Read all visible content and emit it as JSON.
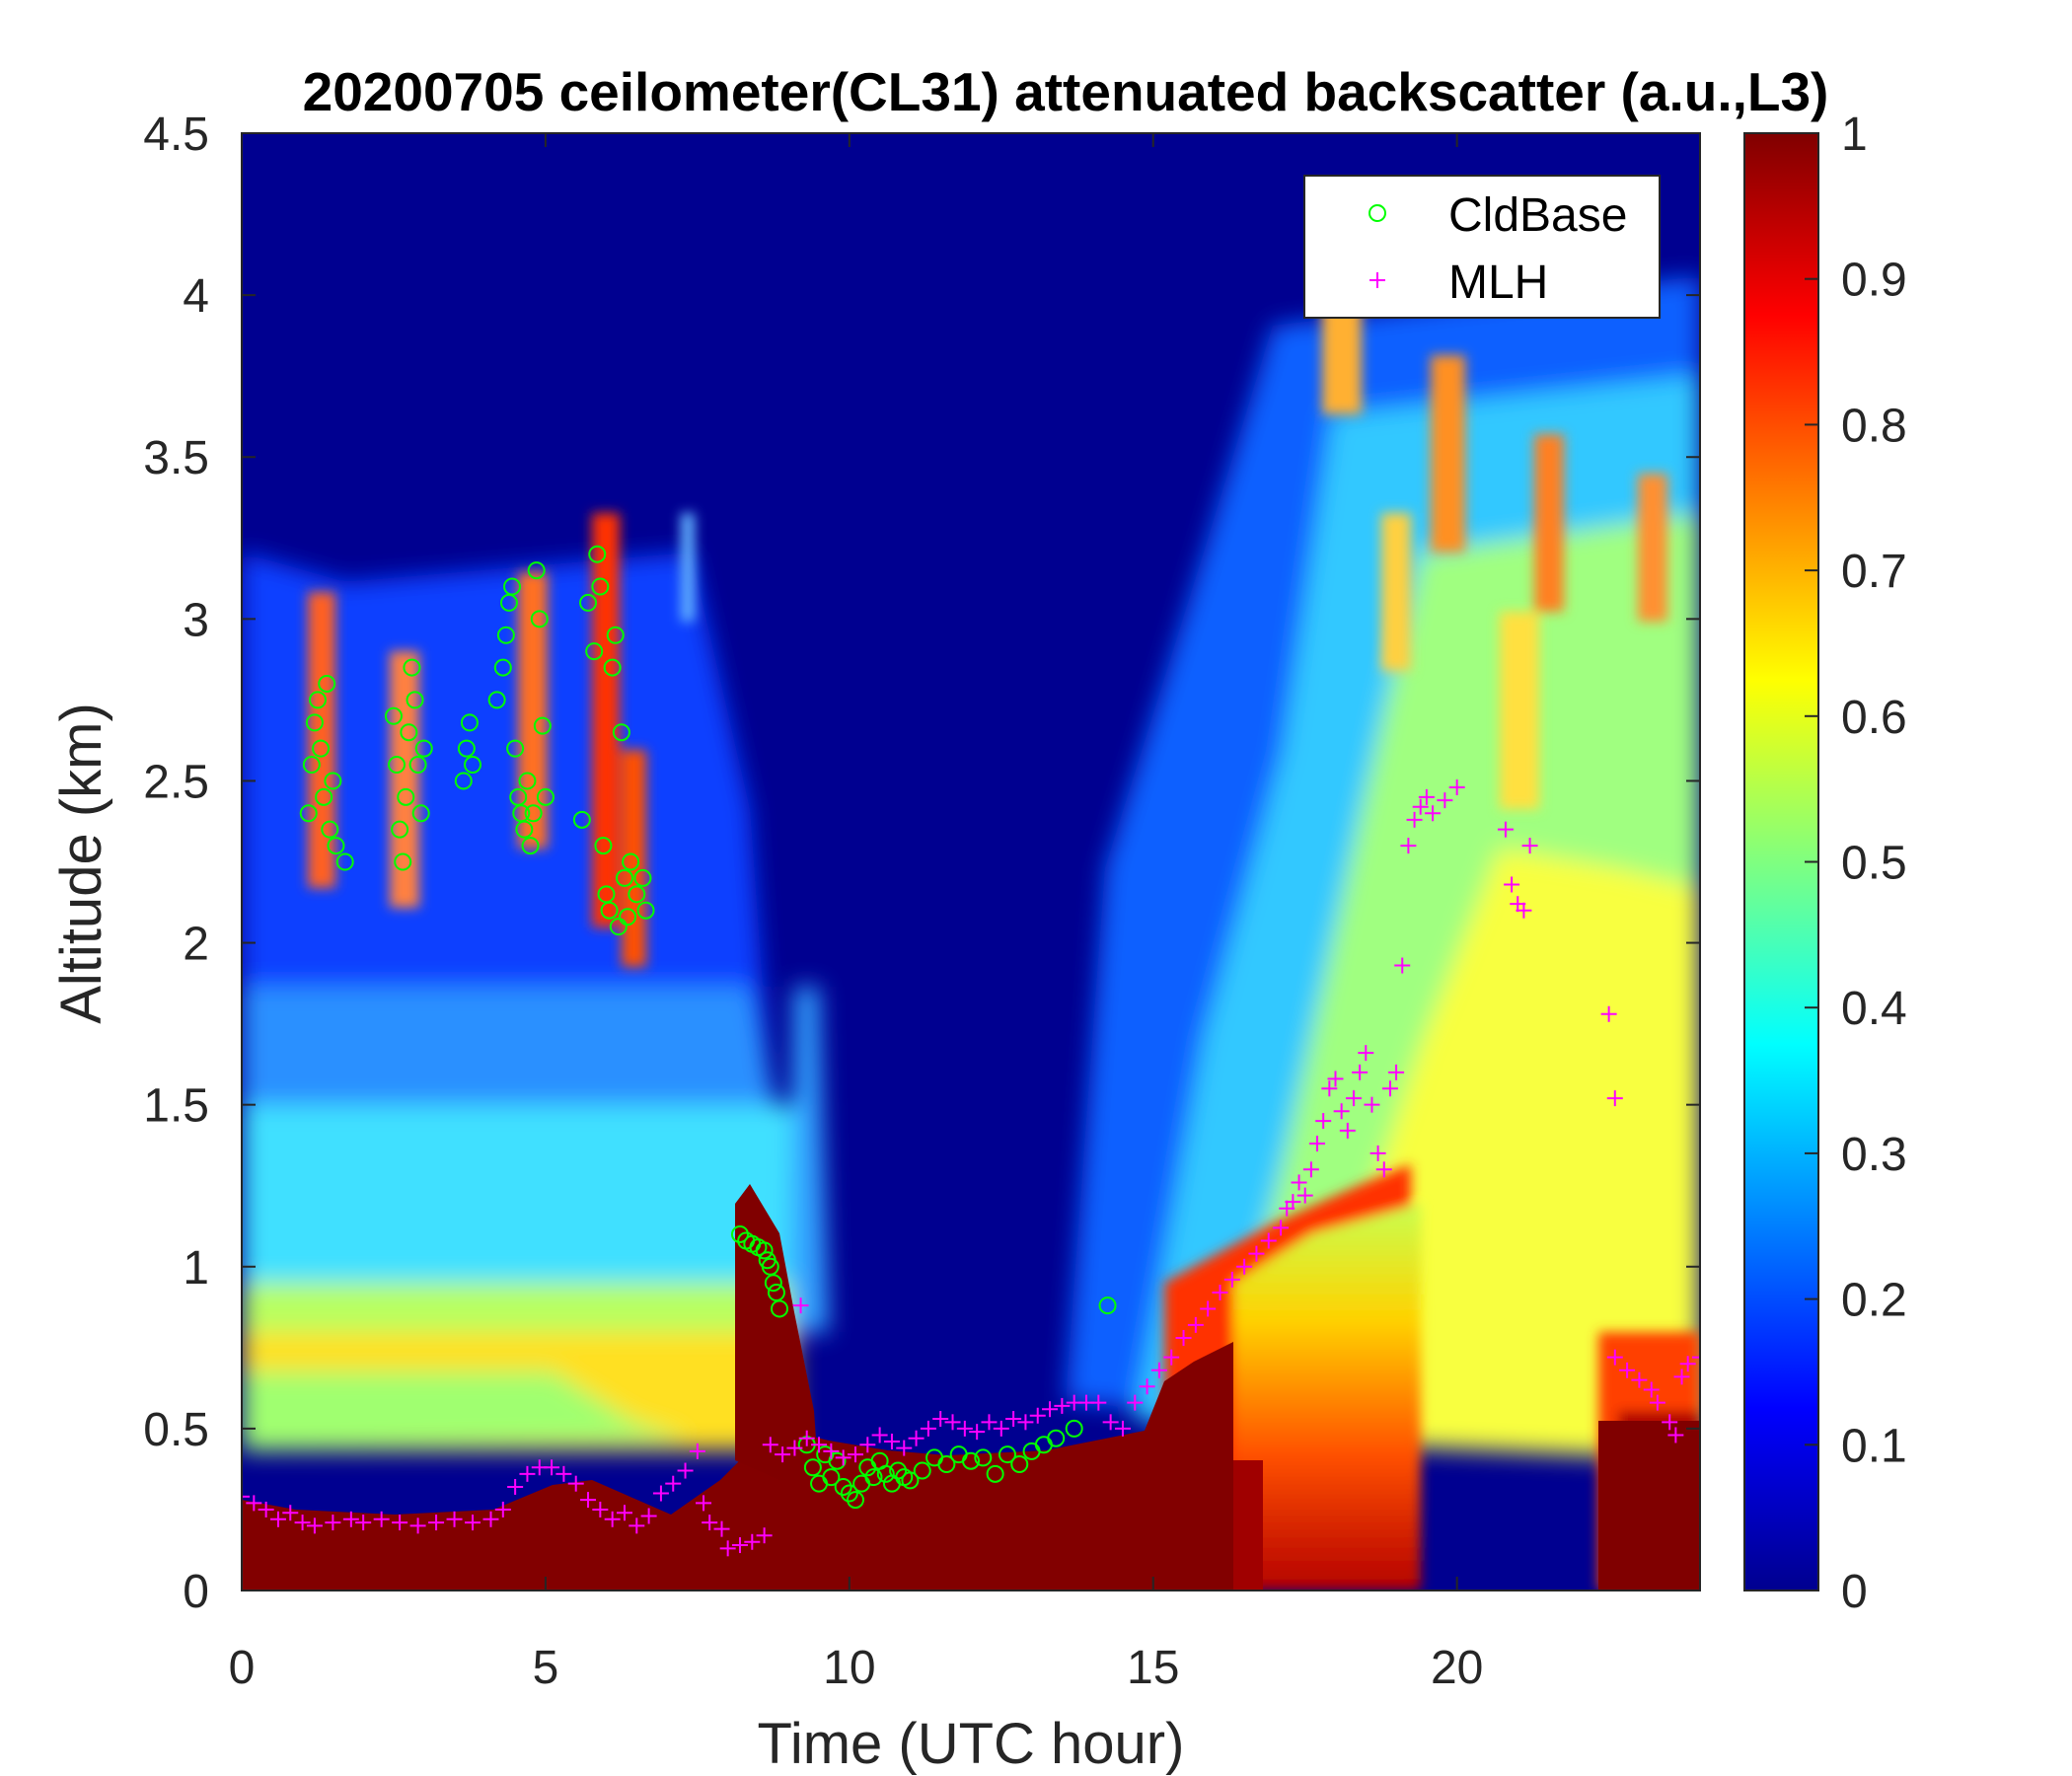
{
  "chart_data": {
    "type": "heatmap",
    "title": "20200705 ceilometer(CL31) attenuated backscatter (a.u.,L3)",
    "xlabel": "Time (UTC hour)",
    "ylabel": "Altitude (km)",
    "xlim": [
      0,
      24
    ],
    "ylim": [
      0,
      4.5
    ],
    "xticks": [
      0,
      5,
      10,
      15,
      20
    ],
    "yticks": [
      0,
      0.5,
      1,
      1.5,
      2,
      2.5,
      3,
      3.5,
      4,
      4.5
    ],
    "xtick_labels": [
      "0",
      "5",
      "10",
      "15",
      "20"
    ],
    "ytick_labels": [
      "0",
      "0.5",
      "1",
      "1.5",
      "2",
      "2.5",
      "3",
      "3.5",
      "4",
      "4.5"
    ],
    "colorbar": {
      "colormap": "jet",
      "clim": [
        0,
        1
      ],
      "ticks": [
        0,
        0.1,
        0.2,
        0.3,
        0.4,
        0.5,
        0.6,
        0.7,
        0.8,
        0.9,
        1
      ],
      "tick_labels": [
        "0",
        "0.1",
        "0.2",
        "0.3",
        "0.4",
        "0.5",
        "0.6",
        "0.7",
        "0.8",
        "0.9",
        "1"
      ]
    },
    "legend": {
      "position": "top-right",
      "entries": [
        "CldBase",
        "MLH"
      ]
    },
    "colors": {
      "CldBase": "#00ff00",
      "MLH": "#ff00ff"
    },
    "series": [
      {
        "name": "CldBase",
        "marker": "circle",
        "points": [
          [
            1.1,
            2.4
          ],
          [
            1.15,
            2.55
          ],
          [
            1.2,
            2.68
          ],
          [
            1.25,
            2.75
          ],
          [
            1.3,
            2.6
          ],
          [
            1.35,
            2.45
          ],
          [
            1.4,
            2.8
          ],
          [
            1.45,
            2.35
          ],
          [
            1.5,
            2.5
          ],
          [
            1.55,
            2.3
          ],
          [
            1.7,
            2.25
          ],
          [
            2.5,
            2.7
          ],
          [
            2.55,
            2.55
          ],
          [
            2.6,
            2.35
          ],
          [
            2.65,
            2.25
          ],
          [
            2.7,
            2.45
          ],
          [
            2.75,
            2.65
          ],
          [
            2.8,
            2.85
          ],
          [
            2.85,
            2.75
          ],
          [
            2.9,
            2.55
          ],
          [
            2.95,
            2.4
          ],
          [
            3.0,
            2.6
          ],
          [
            3.65,
            2.5
          ],
          [
            3.7,
            2.6
          ],
          [
            3.75,
            2.68
          ],
          [
            3.8,
            2.55
          ],
          [
            4.2,
            2.75
          ],
          [
            4.3,
            2.85
          ],
          [
            4.35,
            2.95
          ],
          [
            4.4,
            3.05
          ],
          [
            4.45,
            3.1
          ],
          [
            4.5,
            2.6
          ],
          [
            4.55,
            2.45
          ],
          [
            4.6,
            2.4
          ],
          [
            4.65,
            2.35
          ],
          [
            4.7,
            2.5
          ],
          [
            4.75,
            2.3
          ],
          [
            4.8,
            2.4
          ],
          [
            4.85,
            3.15
          ],
          [
            4.9,
            3.0
          ],
          [
            4.95,
            2.67
          ],
          [
            5.0,
            2.45
          ],
          [
            5.6,
            2.38
          ],
          [
            5.7,
            3.05
          ],
          [
            5.8,
            2.9
          ],
          [
            5.85,
            3.2
          ],
          [
            5.9,
            3.1
          ],
          [
            5.95,
            2.3
          ],
          [
            6.0,
            2.15
          ],
          [
            6.05,
            2.1
          ],
          [
            6.1,
            2.85
          ],
          [
            6.15,
            2.95
          ],
          [
            6.2,
            2.05
          ],
          [
            6.25,
            2.65
          ],
          [
            6.3,
            2.2
          ],
          [
            6.35,
            2.08
          ],
          [
            6.4,
            2.25
          ],
          [
            6.5,
            2.15
          ],
          [
            6.6,
            2.2
          ],
          [
            6.65,
            2.1
          ],
          [
            8.2,
            1.1
          ],
          [
            8.3,
            1.08
          ],
          [
            8.4,
            1.07
          ],
          [
            8.5,
            1.06
          ],
          [
            8.6,
            1.05
          ],
          [
            8.65,
            1.02
          ],
          [
            8.7,
            1.0
          ],
          [
            8.75,
            0.95
          ],
          [
            8.8,
            0.92
          ],
          [
            8.85,
            0.87
          ],
          [
            9.3,
            0.45
          ],
          [
            9.4,
            0.38
          ],
          [
            9.5,
            0.33
          ],
          [
            9.6,
            0.42
          ],
          [
            9.7,
            0.35
          ],
          [
            9.8,
            0.4
          ],
          [
            9.9,
            0.32
          ],
          [
            10.0,
            0.3
          ],
          [
            10.1,
            0.28
          ],
          [
            10.2,
            0.33
          ],
          [
            10.3,
            0.38
          ],
          [
            10.4,
            0.35
          ],
          [
            10.5,
            0.4
          ],
          [
            10.6,
            0.36
          ],
          [
            10.7,
            0.33
          ],
          [
            10.8,
            0.37
          ],
          [
            10.9,
            0.35
          ],
          [
            11.0,
            0.34
          ],
          [
            11.2,
            0.37
          ],
          [
            11.4,
            0.41
          ],
          [
            11.6,
            0.39
          ],
          [
            11.8,
            0.42
          ],
          [
            12.0,
            0.4
          ],
          [
            12.2,
            0.41
          ],
          [
            12.4,
            0.36
          ],
          [
            12.6,
            0.42
          ],
          [
            12.8,
            0.39
          ],
          [
            13.0,
            0.43
          ],
          [
            13.2,
            0.45
          ],
          [
            13.4,
            0.47
          ],
          [
            13.7,
            0.5
          ],
          [
            14.25,
            0.88
          ]
        ]
      },
      {
        "name": "MLH",
        "marker": "plus",
        "points": [
          [
            0.0,
            0.29
          ],
          [
            0.2,
            0.27
          ],
          [
            0.4,
            0.25
          ],
          [
            0.6,
            0.22
          ],
          [
            0.8,
            0.24
          ],
          [
            1.0,
            0.21
          ],
          [
            1.2,
            0.2
          ],
          [
            1.5,
            0.21
          ],
          [
            1.8,
            0.22
          ],
          [
            2.0,
            0.21
          ],
          [
            2.3,
            0.22
          ],
          [
            2.6,
            0.21
          ],
          [
            2.9,
            0.2
          ],
          [
            3.2,
            0.21
          ],
          [
            3.5,
            0.22
          ],
          [
            3.8,
            0.21
          ],
          [
            4.1,
            0.22
          ],
          [
            4.3,
            0.25
          ],
          [
            4.5,
            0.32
          ],
          [
            4.7,
            0.36
          ],
          [
            4.9,
            0.38
          ],
          [
            5.1,
            0.38
          ],
          [
            5.3,
            0.36
          ],
          [
            5.5,
            0.33
          ],
          [
            5.7,
            0.28
          ],
          [
            5.9,
            0.25
          ],
          [
            6.1,
            0.22
          ],
          [
            6.3,
            0.24
          ],
          [
            6.5,
            0.2
          ],
          [
            6.7,
            0.23
          ],
          [
            6.9,
            0.3
          ],
          [
            7.1,
            0.33
          ],
          [
            7.3,
            0.37
          ],
          [
            7.5,
            0.43
          ],
          [
            7.6,
            0.27
          ],
          [
            7.7,
            0.21
          ],
          [
            7.9,
            0.19
          ],
          [
            8.0,
            0.13
          ],
          [
            8.2,
            0.14
          ],
          [
            8.4,
            0.15
          ],
          [
            8.6,
            0.17
          ],
          [
            8.7,
            0.45
          ],
          [
            8.9,
            0.42
          ],
          [
            9.1,
            0.44
          ],
          [
            9.2,
            0.88
          ],
          [
            9.3,
            0.47
          ],
          [
            9.5,
            0.45
          ],
          [
            9.7,
            0.43
          ],
          [
            9.9,
            0.41
          ],
          [
            10.1,
            0.42
          ],
          [
            10.3,
            0.45
          ],
          [
            10.5,
            0.48
          ],
          [
            10.7,
            0.46
          ],
          [
            10.9,
            0.44
          ],
          [
            11.1,
            0.47
          ],
          [
            11.3,
            0.5
          ],
          [
            11.5,
            0.53
          ],
          [
            11.7,
            0.52
          ],
          [
            11.9,
            0.5
          ],
          [
            12.1,
            0.49
          ],
          [
            12.3,
            0.52
          ],
          [
            12.5,
            0.5
          ],
          [
            12.7,
            0.53
          ],
          [
            12.9,
            0.52
          ],
          [
            13.1,
            0.54
          ],
          [
            13.3,
            0.56
          ],
          [
            13.5,
            0.57
          ],
          [
            13.7,
            0.58
          ],
          [
            13.9,
            0.58
          ],
          [
            14.1,
            0.58
          ],
          [
            14.3,
            0.52
          ],
          [
            14.5,
            0.5
          ],
          [
            14.7,
            0.58
          ],
          [
            14.9,
            0.63
          ],
          [
            15.1,
            0.68
          ],
          [
            15.3,
            0.72
          ],
          [
            15.5,
            0.78
          ],
          [
            15.7,
            0.82
          ],
          [
            15.9,
            0.87
          ],
          [
            16.1,
            0.92
          ],
          [
            16.3,
            0.96
          ],
          [
            16.5,
            1.0
          ],
          [
            16.7,
            1.04
          ],
          [
            16.9,
            1.08
          ],
          [
            17.1,
            1.12
          ],
          [
            17.2,
            1.18
          ],
          [
            17.3,
            1.2
          ],
          [
            17.4,
            1.26
          ],
          [
            17.5,
            1.22
          ],
          [
            17.6,
            1.3
          ],
          [
            17.7,
            1.38
          ],
          [
            17.8,
            1.45
          ],
          [
            17.9,
            1.55
          ],
          [
            18.0,
            1.58
          ],
          [
            18.1,
            1.48
          ],
          [
            18.2,
            1.42
          ],
          [
            18.3,
            1.52
          ],
          [
            18.4,
            1.6
          ],
          [
            18.5,
            1.66
          ],
          [
            18.6,
            1.5
          ],
          [
            18.7,
            1.35
          ],
          [
            18.8,
            1.3
          ],
          [
            18.9,
            1.55
          ],
          [
            19.0,
            1.6
          ],
          [
            19.1,
            1.93
          ],
          [
            19.2,
            2.3
          ],
          [
            19.3,
            2.38
          ],
          [
            19.4,
            2.42
          ],
          [
            19.5,
            2.45
          ],
          [
            19.6,
            2.4
          ],
          [
            19.8,
            2.44
          ],
          [
            20.0,
            2.48
          ],
          [
            20.8,
            2.35
          ],
          [
            20.9,
            2.18
          ],
          [
            21.0,
            2.12
          ],
          [
            21.1,
            2.1
          ],
          [
            21.2,
            2.3
          ],
          [
            22.5,
            1.78
          ],
          [
            22.6,
            1.52
          ],
          [
            22.6,
            0.72
          ],
          [
            22.8,
            0.68
          ],
          [
            23.0,
            0.65
          ],
          [
            23.2,
            0.62
          ],
          [
            23.3,
            0.58
          ],
          [
            23.5,
            0.52
          ],
          [
            23.6,
            0.48
          ],
          [
            23.7,
            0.66
          ],
          [
            23.8,
            0.7
          ],
          [
            24.0,
            0.72
          ]
        ]
      }
    ]
  }
}
